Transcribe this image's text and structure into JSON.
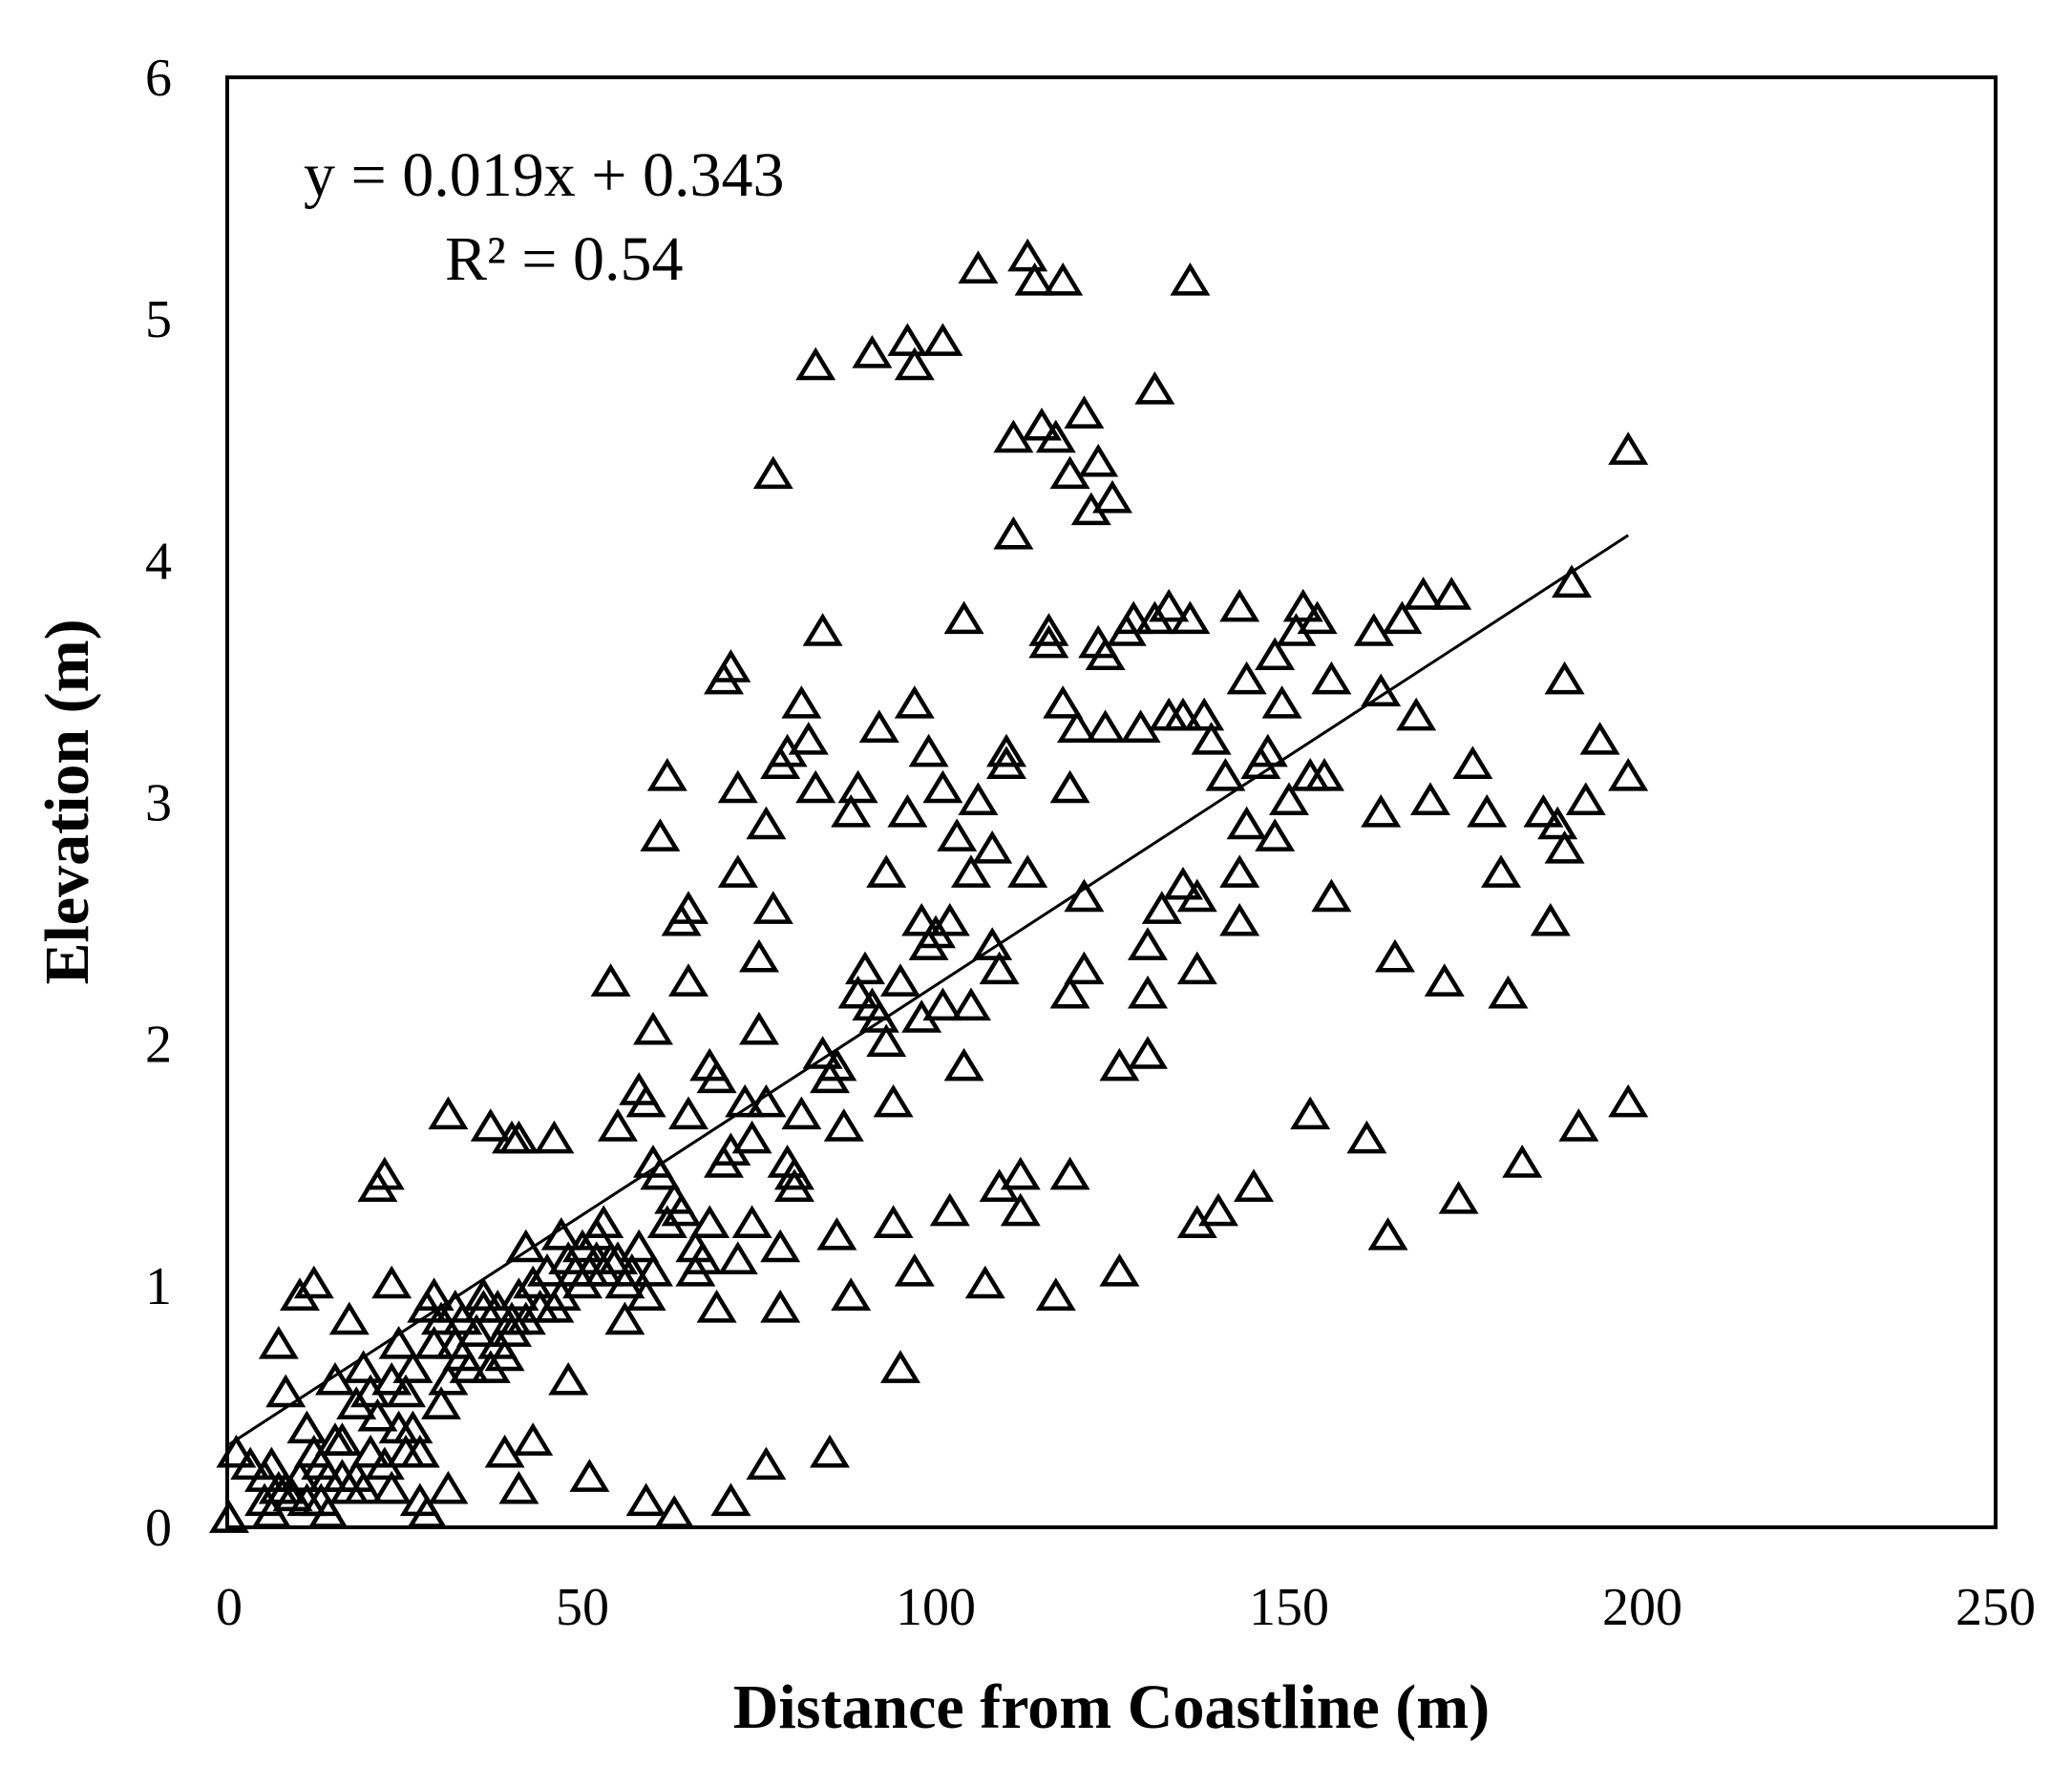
{
  "chart_data": {
    "type": "scatter",
    "title": "",
    "xlabel": "Distance from Coastline (m)",
    "ylabel": "Elevation (m)",
    "xlim": [
      0,
      250
    ],
    "ylim": [
      0,
      6
    ],
    "xticks": [
      "0",
      "50",
      "100",
      "150",
      "200",
      "250"
    ],
    "yticks": [
      "0",
      "1",
      "2",
      "3",
      "4",
      "5",
      "6"
    ],
    "grid": false,
    "legend": "none",
    "marker": "open-triangle",
    "trendline": {
      "equation": "y = 0.019x + 0.343",
      "r_squared": "R² = 0.54",
      "slope": 0.019,
      "intercept": 0.343,
      "x_range": [
        0,
        198
      ]
    },
    "series": [
      {
        "name": "Elevation",
        "points": [
          [
            0,
            0.03
          ],
          [
            1,
            0.3
          ],
          [
            3,
            0.25
          ],
          [
            5,
            0.1
          ],
          [
            5,
            0.2
          ],
          [
            6,
            0.05
          ],
          [
            6,
            0.25
          ],
          [
            7,
            0.15
          ],
          [
            7,
            0.75
          ],
          [
            8,
            0.15
          ],
          [
            8,
            0.55
          ],
          [
            9,
            0.12
          ],
          [
            10,
            0.2
          ],
          [
            10,
            0.95
          ],
          [
            11,
            0.1
          ],
          [
            11,
            0.4
          ],
          [
            12,
            0.3
          ],
          [
            12,
            1.0
          ],
          [
            13,
            0.1
          ],
          [
            13,
            0.25
          ],
          [
            14,
            0.05
          ],
          [
            14,
            0.2
          ],
          [
            15,
            0.35
          ],
          [
            15,
            0.6
          ],
          [
            16,
            0.2
          ],
          [
            16,
            0.35
          ],
          [
            17,
            0.15
          ],
          [
            17,
            0.85
          ],
          [
            18,
            0.2
          ],
          [
            18,
            0.5
          ],
          [
            19,
            0.15
          ],
          [
            19,
            0.65
          ],
          [
            20,
            0.3
          ],
          [
            20,
            0.55
          ],
          [
            21,
            1.4
          ],
          [
            21,
            0.45
          ],
          [
            22,
            0.25
          ],
          [
            22,
            1.45
          ],
          [
            23,
            1.0
          ],
          [
            23,
            0.15
          ],
          [
            23,
            0.6
          ],
          [
            24,
            0.4
          ],
          [
            24,
            0.75
          ],
          [
            25,
            0.55
          ],
          [
            25,
            0.3
          ],
          [
            26,
            0.4
          ],
          [
            26,
            0.65
          ],
          [
            27,
            0.3
          ],
          [
            27,
            0.1
          ],
          [
            28,
            0.9
          ],
          [
            28,
            0.05
          ],
          [
            29,
            0.75
          ],
          [
            29,
            0.95
          ],
          [
            30,
            0.5
          ],
          [
            30,
            0.85
          ],
          [
            31,
            0.6
          ],
          [
            31,
            1.7
          ],
          [
            31,
            0.15
          ],
          [
            32,
            0.75
          ],
          [
            32,
            0.9
          ],
          [
            33,
            0.7
          ],
          [
            33,
            0.85
          ],
          [
            34,
            0.65
          ],
          [
            35,
            0.8
          ],
          [
            36,
            0.9
          ],
          [
            36,
            0.95
          ],
          [
            37,
            0.65
          ],
          [
            37,
            1.65
          ],
          [
            38,
            0.75
          ],
          [
            38,
            0.9
          ],
          [
            39,
            0.3
          ],
          [
            39,
            0.7
          ],
          [
            40,
            0.85
          ],
          [
            40,
            1.6
          ],
          [
            40,
            0.8
          ],
          [
            41,
            1.6
          ],
          [
            41,
            0.15
          ],
          [
            41,
            0.95
          ],
          [
            42,
            0.85
          ],
          [
            42,
            1.15
          ],
          [
            43,
            0.35
          ],
          [
            43,
            1.0
          ],
          [
            44,
            0.9
          ],
          [
            45,
            1.05
          ],
          [
            46,
            0.9
          ],
          [
            46,
            1.6
          ],
          [
            47,
            0.95
          ],
          [
            47,
            1.2
          ],
          [
            48,
            0.6
          ],
          [
            48,
            1.1
          ],
          [
            49,
            1.05
          ],
          [
            50,
            1.0
          ],
          [
            50,
            1.15
          ],
          [
            51,
            1.05
          ],
          [
            51,
            0.2
          ],
          [
            52,
            1.1
          ],
          [
            52,
            1.2
          ],
          [
            53,
            1.25
          ],
          [
            53,
            1.05
          ],
          [
            54,
            1.1
          ],
          [
            54,
            2.25
          ],
          [
            55,
            1.65
          ],
          [
            55,
            1.1
          ],
          [
            56,
            1.0
          ],
          [
            56,
            0.85
          ],
          [
            57,
            1.05
          ],
          [
            58,
            1.15
          ],
          [
            58,
            1.8
          ],
          [
            59,
            1.75
          ],
          [
            59,
            0.1
          ],
          [
            59,
            0.95
          ],
          [
            60,
            1.5
          ],
          [
            60,
            2.05
          ],
          [
            60,
            1.05
          ],
          [
            61,
            2.85
          ],
          [
            61,
            1.45
          ],
          [
            62,
            3.1
          ],
          [
            62,
            1.25
          ],
          [
            63,
            0.05
          ],
          [
            63,
            1.35
          ],
          [
            64,
            1.3
          ],
          [
            64,
            2.5
          ],
          [
            65,
            2.55
          ],
          [
            65,
            2.25
          ],
          [
            65,
            1.7
          ],
          [
            66,
            1.15
          ],
          [
            66,
            1.05
          ],
          [
            67,
            1.1
          ],
          [
            68,
            1.25
          ],
          [
            68,
            1.9
          ],
          [
            69,
            1.85
          ],
          [
            69,
            0.9
          ],
          [
            70,
            3.5
          ],
          [
            70,
            1.5
          ],
          [
            71,
            3.55
          ],
          [
            71,
            1.55
          ],
          [
            71,
            0.1
          ],
          [
            72,
            2.7
          ],
          [
            72,
            3.05
          ],
          [
            72,
            1.1
          ],
          [
            73,
            1.75
          ],
          [
            74,
            1.25
          ],
          [
            74,
            1.6
          ],
          [
            75,
            2.35
          ],
          [
            75,
            2.05
          ],
          [
            76,
            2.9
          ],
          [
            76,
            1.75
          ],
          [
            76,
            0.25
          ],
          [
            77,
            4.35
          ],
          [
            77,
            2.55
          ],
          [
            78,
            3.15
          ],
          [
            78,
            1.15
          ],
          [
            78,
            0.9
          ],
          [
            79,
            3.2
          ],
          [
            79,
            1.5
          ],
          [
            80,
            1.45
          ],
          [
            80,
            1.4
          ],
          [
            81,
            1.7
          ],
          [
            81,
            3.4
          ],
          [
            82,
            3.25
          ],
          [
            83,
            3.05
          ],
          [
            83,
            4.8
          ],
          [
            84,
            1.95
          ],
          [
            84,
            3.7
          ],
          [
            85,
            1.85
          ],
          [
            85,
            0.3
          ],
          [
            86,
            1.9
          ],
          [
            86,
            1.2
          ],
          [
            87,
            1.65
          ],
          [
            88,
            2.95
          ],
          [
            88,
            0.95
          ],
          [
            89,
            3.05
          ],
          [
            89,
            2.2
          ],
          [
            90,
            2.3
          ],
          [
            91,
            2.15
          ],
          [
            91,
            4.85
          ],
          [
            92,
            3.3
          ],
          [
            92,
            2.1
          ],
          [
            93,
            2.7
          ],
          [
            93,
            2.0
          ],
          [
            94,
            1.75
          ],
          [
            94,
            1.25
          ],
          [
            95,
            0.65
          ],
          [
            95,
            2.25
          ],
          [
            96,
            2.95
          ],
          [
            96,
            4.9
          ],
          [
            97,
            3.4
          ],
          [
            97,
            4.8
          ],
          [
            97,
            1.05
          ],
          [
            98,
            2.5
          ],
          [
            98,
            2.1
          ],
          [
            99,
            3.2
          ],
          [
            99,
            2.4
          ],
          [
            100,
            2.45
          ],
          [
            101,
            4.9
          ],
          [
            101,
            3.05
          ],
          [
            101,
            2.15
          ],
          [
            102,
            2.5
          ],
          [
            102,
            1.3
          ],
          [
            103,
            2.85
          ],
          [
            104,
            3.75
          ],
          [
            104,
            1.9
          ],
          [
            105,
            2.7
          ],
          [
            105,
            2.15
          ],
          [
            106,
            5.2
          ],
          [
            106,
            3.0
          ],
          [
            107,
            1.0
          ],
          [
            108,
            2.8
          ],
          [
            108,
            2.4
          ],
          [
            109,
            1.4
          ],
          [
            109,
            2.3
          ],
          [
            110,
            3.15
          ],
          [
            110,
            3.2
          ],
          [
            111,
            4.5
          ],
          [
            111,
            4.1
          ],
          [
            112,
            1.3
          ],
          [
            112,
            1.45
          ],
          [
            113,
            5.25
          ],
          [
            113,
            2.7
          ],
          [
            114,
            5.15
          ],
          [
            115,
            4.55
          ],
          [
            116,
            3.7
          ],
          [
            116,
            3.65
          ],
          [
            117,
            4.5
          ],
          [
            117,
            0.95
          ],
          [
            118,
            5.15
          ],
          [
            118,
            3.4
          ],
          [
            119,
            4.35
          ],
          [
            119,
            3.05
          ],
          [
            119,
            2.2
          ],
          [
            119,
            1.45
          ],
          [
            120,
            3.3
          ],
          [
            121,
            4.6
          ],
          [
            121,
            2.6
          ],
          [
            121,
            2.3
          ],
          [
            122,
            4.2
          ],
          [
            123,
            3.65
          ],
          [
            123,
            4.4
          ],
          [
            124,
            3.6
          ],
          [
            124,
            3.3
          ],
          [
            125,
            4.25
          ],
          [
            126,
            1.05
          ],
          [
            126,
            1.9
          ],
          [
            127,
            3.7
          ],
          [
            128,
            3.75
          ],
          [
            129,
            3.3
          ],
          [
            130,
            2.2
          ],
          [
            130,
            1.95
          ],
          [
            130,
            2.4
          ],
          [
            131,
            3.75
          ],
          [
            131,
            4.7
          ],
          [
            132,
            2.55
          ],
          [
            133,
            3.8
          ],
          [
            133,
            3.35
          ],
          [
            135,
            3.35
          ],
          [
            135,
            2.65
          ],
          [
            136,
            3.75
          ],
          [
            136,
            5.15
          ],
          [
            137,
            2.3
          ],
          [
            137,
            2.6
          ],
          [
            137,
            1.25
          ],
          [
            138,
            3.35
          ],
          [
            139,
            3.25
          ],
          [
            140,
            1.3
          ],
          [
            141,
            3.1
          ],
          [
            143,
            2.7
          ],
          [
            143,
            2.5
          ],
          [
            143,
            3.8
          ],
          [
            144,
            3.5
          ],
          [
            144,
            2.9
          ],
          [
            145,
            1.4
          ],
          [
            146,
            3.15
          ],
          [
            147,
            3.2
          ],
          [
            148,
            3.6
          ],
          [
            148,
            2.85
          ],
          [
            149,
            3.4
          ],
          [
            150,
            3.0
          ],
          [
            151,
            3.7
          ],
          [
            152,
            3.8
          ],
          [
            153,
            1.7
          ],
          [
            153,
            3.1
          ],
          [
            154,
            3.75
          ],
          [
            155,
            3.1
          ],
          [
            156,
            2.6
          ],
          [
            156,
            3.5
          ],
          [
            161,
            1.6
          ],
          [
            162,
            3.7
          ],
          [
            163,
            3.45
          ],
          [
            163,
            2.95
          ],
          [
            164,
            1.2
          ],
          [
            165,
            2.35
          ],
          [
            166,
            3.75
          ],
          [
            168,
            3.35
          ],
          [
            169,
            3.85
          ],
          [
            170,
            3.0
          ],
          [
            172,
            2.25
          ],
          [
            173,
            3.85
          ],
          [
            174,
            1.35
          ],
          [
            176,
            3.15
          ],
          [
            178,
            2.95
          ],
          [
            180,
            2.7
          ],
          [
            181,
            2.2
          ],
          [
            183,
            1.5
          ],
          [
            186,
            2.95
          ],
          [
            187,
            2.5
          ],
          [
            188,
            2.9
          ],
          [
            189,
            2.8
          ],
          [
            189,
            3.5
          ],
          [
            190,
            3.9
          ],
          [
            191,
            1.65
          ],
          [
            192,
            3.0
          ],
          [
            194,
            3.25
          ],
          [
            198,
            3.1
          ],
          [
            198,
            1.75
          ],
          [
            198,
            4.45
          ]
        ]
      }
    ]
  }
}
